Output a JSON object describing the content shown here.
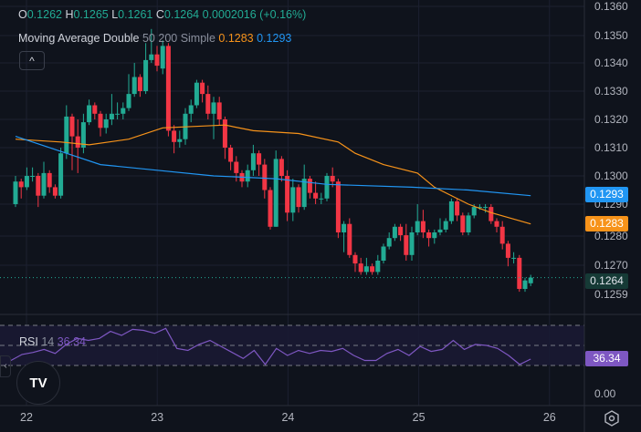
{
  "legend": {
    "o_key": "O",
    "o_val": "0.1262",
    "h_key": "H",
    "h_val": "0.1265",
    "l_key": "L",
    "l_val": "0.1261",
    "c_key": "C",
    "c_val": "0.1264",
    "change": "0.0002016 (+0.16%)",
    "ma_name": "Moving Average Double",
    "ma_params": "50 200 Simple",
    "ma_fast_val": "0.1283",
    "ma_slow_val": "0.1293",
    "collapse_icon": "^"
  },
  "price_axis": {
    "labels": [
      "0.1360",
      "0.1350",
      "0.1340",
      "0.1330",
      "0.1320",
      "0.1310",
      "0.1300",
      "0.1290",
      "0.1280",
      "0.1270",
      "0.1259"
    ],
    "tag_ma_slow": "0.1293",
    "tag_ma_fast": "0.1283",
    "tag_last": "0.1264"
  },
  "rsi": {
    "name": "RSI",
    "length": "14",
    "value": "36.34",
    "tag": "36.34",
    "axis_zero": "0.00",
    "upper": 70,
    "middle": 50,
    "lower": 30
  },
  "time_axis": {
    "labels": [
      "22",
      "23",
      "24",
      "25",
      "26"
    ]
  },
  "logo_text": "TV",
  "collapse_side_icon": "‹",
  "colors": {
    "background": "#0f131c",
    "up": "#22ab94",
    "down": "#f23645",
    "ma_fast": "#f7931a",
    "ma_slow": "#2196f3",
    "rsi": "#7e57c2",
    "grid": "#1c2030"
  },
  "chart_data": {
    "type": "candlestick",
    "interval_note": "",
    "candles": [
      [
        0.129,
        0.13,
        0.1289,
        0.1298
      ],
      [
        0.1298,
        0.1299,
        0.1292,
        0.1296
      ],
      [
        0.1296,
        0.1303,
        0.1295,
        0.13
      ],
      [
        0.13,
        0.1303,
        0.1298,
        0.13
      ],
      [
        0.13,
        0.1301,
        0.1289,
        0.1293
      ],
      [
        0.1293,
        0.1305,
        0.1292,
        0.1301
      ],
      [
        0.1301,
        0.1302,
        0.1294,
        0.1296
      ],
      [
        0.1296,
        0.1297,
        0.1292,
        0.1293
      ],
      [
        0.1293,
        0.131,
        0.1292,
        0.1308
      ],
      [
        0.1308,
        0.1325,
        0.1306,
        0.1321
      ],
      [
        0.1321,
        0.1322,
        0.1302,
        0.1314
      ],
      [
        0.1314,
        0.132,
        0.1301,
        0.131
      ],
      [
        0.131,
        0.1322,
        0.1308,
        0.1319
      ],
      [
        0.1319,
        0.1327,
        0.1318,
        0.1325
      ],
      [
        0.1325,
        0.1326,
        0.132,
        0.1322
      ],
      [
        0.1322,
        0.1323,
        0.1314,
        0.1317
      ],
      [
        0.1317,
        0.1322,
        0.1315,
        0.132
      ],
      [
        0.132,
        0.1329,
        0.1318,
        0.1322
      ],
      [
        0.1322,
        0.1326,
        0.132,
        0.1322
      ],
      [
        0.1322,
        0.1326,
        0.132,
        0.1324
      ],
      [
        0.1324,
        0.1336,
        0.1323,
        0.1329
      ],
      [
        0.1329,
        0.134,
        0.1328,
        0.1335
      ],
      [
        0.1335,
        0.1336,
        0.1328,
        0.133
      ],
      [
        0.133,
        0.1347,
        0.1329,
        0.1341
      ],
      [
        0.1341,
        0.1352,
        0.134,
        0.1343
      ],
      [
        0.1343,
        0.1346,
        0.1337,
        0.1339
      ],
      [
        0.1338,
        0.1348,
        0.1336,
        0.1346
      ],
      [
        0.1346,
        0.1347,
        0.1314,
        0.1316
      ],
      [
        0.1316,
        0.1318,
        0.1308,
        0.1312
      ],
      [
        0.1312,
        0.1316,
        0.131,
        0.1313
      ],
      [
        0.1313,
        0.1324,
        0.1311,
        0.1322
      ],
      [
        0.1322,
        0.1327,
        0.1319,
        0.1325
      ],
      [
        0.1325,
        0.1334,
        0.1324,
        0.1333
      ],
      [
        0.1333,
        0.1334,
        0.1326,
        0.1329
      ],
      [
        0.1329,
        0.1332,
        0.132,
        0.1322
      ],
      [
        0.1322,
        0.1328,
        0.1313,
        0.1326
      ],
      [
        0.1326,
        0.1328,
        0.1318,
        0.132
      ],
      [
        0.132,
        0.1321,
        0.1306,
        0.131
      ],
      [
        0.131,
        0.1311,
        0.1302,
        0.1305
      ],
      [
        0.1305,
        0.1307,
        0.1298,
        0.1301
      ],
      [
        0.1301,
        0.1302,
        0.1296,
        0.1298
      ],
      [
        0.1298,
        0.1304,
        0.1296,
        0.1302
      ],
      [
        0.1302,
        0.1311,
        0.13,
        0.1308
      ],
      [
        0.1308,
        0.1309,
        0.13,
        0.1304
      ],
      [
        0.1304,
        0.1306,
        0.1292,
        0.1295
      ],
      [
        0.1295,
        0.1296,
        0.1281,
        0.1282
      ],
      [
        0.1282,
        0.1309,
        0.1282,
        0.1306
      ],
      [
        0.1306,
        0.1307,
        0.1298,
        0.13
      ],
      [
        0.13,
        0.1302,
        0.1284,
        0.1287
      ],
      [
        0.1287,
        0.1299,
        0.1284,
        0.1296
      ],
      [
        0.1296,
        0.1297,
        0.1287,
        0.1289
      ],
      [
        0.1289,
        0.1304,
        0.1288,
        0.1299
      ],
      [
        0.1299,
        0.13,
        0.1292,
        0.1294
      ],
      [
        0.1294,
        0.1298,
        0.129,
        0.1292
      ],
      [
        0.1292,
        0.1294,
        0.129,
        0.1292
      ],
      [
        0.1292,
        0.1301,
        0.1291,
        0.13
      ],
      [
        0.13,
        0.1303,
        0.1296,
        0.1298
      ],
      [
        0.1298,
        0.1299,
        0.1278,
        0.128
      ],
      [
        0.128,
        0.1284,
        0.1273,
        0.1283
      ],
      [
        0.1283,
        0.1285,
        0.1271,
        0.1272
      ],
      [
        0.1272,
        0.1273,
        0.1266,
        0.1269
      ],
      [
        0.1269,
        0.1271,
        0.1265,
        0.1266
      ],
      [
        0.1266,
        0.1271,
        0.1265,
        0.1268
      ],
      [
        0.1268,
        0.1269,
        0.1265,
        0.1266
      ],
      [
        0.1266,
        0.1272,
        0.1265,
        0.127
      ],
      [
        0.127,
        0.1276,
        0.1269,
        0.1275
      ],
      [
        0.1275,
        0.128,
        0.1274,
        0.1278
      ],
      [
        0.1278,
        0.1283,
        0.1277,
        0.1282
      ],
      [
        0.1282,
        0.1283,
        0.1277,
        0.1279
      ],
      [
        0.1279,
        0.1283,
        0.127,
        0.1272
      ],
      [
        0.1272,
        0.1282,
        0.127,
        0.128
      ],
      [
        0.128,
        0.129,
        0.1279,
        0.1284
      ],
      [
        0.1284,
        0.1288,
        0.1278,
        0.128
      ],
      [
        0.128,
        0.1281,
        0.1275,
        0.1278
      ],
      [
        0.1278,
        0.1281,
        0.1276,
        0.128
      ],
      [
        0.128,
        0.1285,
        0.1279,
        0.1281
      ],
      [
        0.1281,
        0.1285,
        0.128,
        0.1284
      ],
      [
        0.1284,
        0.1292,
        0.1283,
        0.1291
      ],
      [
        0.1291,
        0.1292,
        0.1284,
        0.1286
      ],
      [
        0.1286,
        0.1287,
        0.1279,
        0.128
      ],
      [
        0.128,
        0.1287,
        0.1279,
        0.1286
      ],
      [
        0.1286,
        0.129,
        0.1285,
        0.1289
      ],
      [
        0.1289,
        0.129,
        0.1288,
        0.1289
      ],
      [
        0.1289,
        0.129,
        0.1287,
        0.1289
      ],
      [
        0.1289,
        0.129,
        0.1283,
        0.1284
      ],
      [
        0.1284,
        0.1285,
        0.128,
        0.1282
      ],
      [
        0.1282,
        0.1284,
        0.1274,
        0.1276
      ],
      [
        0.1276,
        0.1277,
        0.1268,
        0.1271
      ],
      [
        0.1271,
        0.1273,
        0.1269,
        0.1271
      ],
      [
        0.1271,
        0.1272,
        0.1259,
        0.126
      ],
      [
        0.126,
        0.1264,
        0.1259,
        0.1263
      ],
      [
        0.1262,
        0.1265,
        0.1261,
        0.1264
      ]
    ],
    "ma_fast": [
      [
        0,
        0.1313
      ],
      [
        8,
        0.1312
      ],
      [
        13,
        0.1311
      ],
      [
        20,
        0.1313
      ],
      [
        26,
        0.1317
      ],
      [
        37,
        0.1318
      ],
      [
        42,
        0.1316
      ],
      [
        50,
        0.1315
      ],
      [
        57,
        0.1312
      ],
      [
        60,
        0.1308
      ],
      [
        65,
        0.1304
      ],
      [
        71,
        0.1301
      ],
      [
        74,
        0.1296
      ],
      [
        80,
        0.129
      ],
      [
        84,
        0.1287
      ],
      [
        91,
        0.1283
      ]
    ],
    "ma_slow": [
      [
        0,
        0.1314
      ],
      [
        9,
        0.1308
      ],
      [
        15,
        0.1304
      ],
      [
        25,
        0.1302
      ],
      [
        35,
        0.13
      ],
      [
        46,
        0.1299
      ],
      [
        55,
        0.1297
      ],
      [
        70,
        0.1296
      ],
      [
        80,
        0.1295
      ],
      [
        91,
        0.1293
      ]
    ],
    "rsi_values": [
      35,
      41,
      43,
      46,
      42,
      51,
      57,
      55,
      57,
      64,
      60,
      66,
      65,
      62,
      67,
      47,
      45,
      51,
      55,
      49,
      43,
      37,
      45,
      31,
      47,
      40,
      45,
      42,
      45,
      44,
      47,
      40,
      35,
      35,
      42,
      46,
      40,
      49,
      44,
      46,
      55,
      46,
      51,
      50,
      47,
      40,
      31,
      36.34
    ],
    "price_range": [
      0.1255,
      0.1362
    ],
    "rsi_range": [
      0,
      100
    ]
  }
}
